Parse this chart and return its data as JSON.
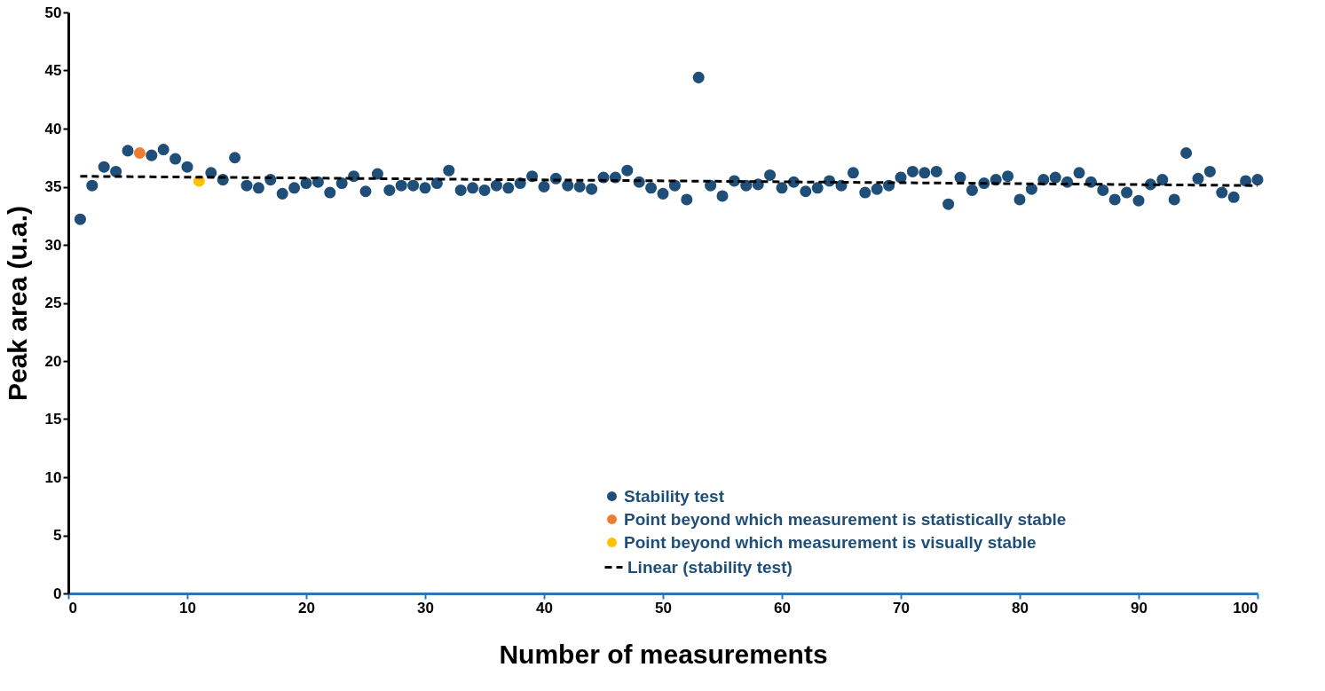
{
  "chart_data": {
    "type": "scatter",
    "xlabel": "Number of measurements",
    "ylabel": "Peak area  (u.a.)",
    "xlim": [
      0,
      100
    ],
    "xticks": [
      0,
      10,
      20,
      30,
      40,
      50,
      60,
      70,
      80,
      90,
      100
    ],
    "ylim": [
      0,
      50
    ],
    "yticks": [
      0,
      5,
      10,
      15,
      20,
      25,
      30,
      35,
      40,
      45,
      50
    ],
    "grid": false,
    "legend": "bottom right",
    "marker": "circle",
    "series": [
      {
        "name": "Stability test",
        "color": "#1f4e79",
        "x": [
          1,
          2,
          3,
          4,
          5,
          6,
          7,
          8,
          9,
          10,
          11,
          12,
          13,
          14,
          15,
          16,
          17,
          18,
          19,
          20,
          21,
          22,
          23,
          24,
          25,
          26,
          27,
          28,
          29,
          30,
          31,
          32,
          33,
          34,
          35,
          36,
          37,
          38,
          39,
          40,
          41,
          42,
          43,
          44,
          45,
          46,
          47,
          48,
          49,
          50,
          51,
          52,
          53,
          54,
          55,
          56,
          57,
          58,
          59,
          60,
          61,
          62,
          63,
          64,
          65,
          66,
          67,
          68,
          69,
          70,
          71,
          72,
          73,
          74,
          75,
          76,
          77,
          78,
          79,
          80,
          81,
          82,
          83,
          84,
          85,
          86,
          87,
          88,
          89,
          90,
          91,
          92,
          93,
          94,
          95,
          96,
          97,
          98,
          99,
          100
        ],
        "values": [
          32.2,
          35.1,
          36.7,
          36.3,
          38.1,
          null,
          37.7,
          38.2,
          37.4,
          36.7,
          null,
          36.2,
          35.6,
          37.5,
          35.1,
          34.9,
          35.6,
          34.4,
          34.9,
          35.3,
          35.4,
          34.5,
          35.3,
          35.9,
          34.6,
          36.1,
          34.7,
          35.1,
          35.1,
          34.9,
          35.3,
          36.4,
          34.7,
          34.9,
          34.7,
          35.1,
          34.9,
          35.3,
          35.9,
          35.0,
          35.7,
          35.1,
          35.0,
          34.8,
          35.8,
          35.8,
          36.4,
          35.4,
          34.9,
          34.4,
          35.1,
          33.9,
          44.4,
          35.1,
          34.2,
          35.5,
          35.1,
          35.2,
          36.0,
          34.9,
          35.4,
          34.6,
          34.9,
          35.5,
          35.1,
          36.2,
          34.5,
          34.8,
          35.1,
          35.8,
          36.3,
          36.2,
          36.3,
          33.5,
          35.8,
          34.7,
          35.3,
          35.6,
          35.9,
          33.9,
          34.8,
          35.6,
          35.8,
          35.4,
          36.2,
          35.4,
          34.7,
          33.9,
          34.5,
          33.8,
          35.2,
          35.6,
          33.9,
          37.9,
          35.7,
          36.3,
          34.5,
          34.1,
          35.5,
          35.6
        ]
      },
      {
        "name": "Point beyond which measurement is statistically stable",
        "color": "#ed7d31",
        "x": [
          6
        ],
        "values": [
          37.9
        ]
      },
      {
        "name": "Point beyond which measurement is visually stable",
        "color": "#ffc000",
        "x": [
          11
        ],
        "values": [
          35.5
        ]
      },
      {
        "name": "Linear (stability test)",
        "color": "#000000",
        "type": "line",
        "line_style": "dashed",
        "marker": "none",
        "x": [
          1,
          100
        ],
        "values": [
          35.9,
          35.1
        ]
      }
    ]
  }
}
